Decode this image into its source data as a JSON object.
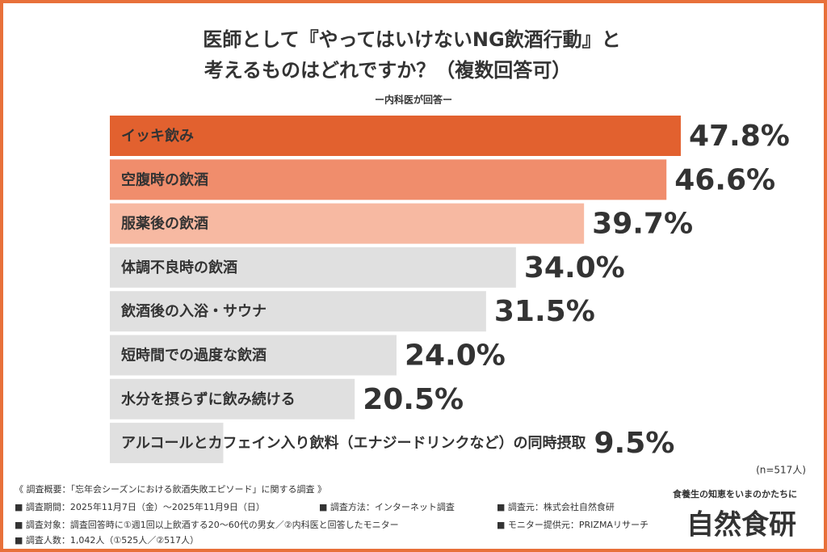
{
  "chart_data": {
    "type": "bar",
    "orientation": "horizontal",
    "title": [
      "医師として『やってはいけないNG飲酒行動』と",
      "考えるものはどれですか？（複数回答可）"
    ],
    "subtitle": "ー内科医が回答ー",
    "note": "(n=517人)",
    "categories": [
      "イッキ飲み",
      "空腹時の飲酒",
      "服薬後の飲酒",
      "体調不良時の飲酒",
      "飲酒後の入浴・サウナ",
      "短時間での過度な飲酒",
      "水分を摂らずに飲み続ける",
      "アルコールとカフェイン入り飲料（エナジードリンクなど）の同時摂取"
    ],
    "values": [
      47.8,
      46.6,
      39.7,
      34.0,
      31.5,
      24.0,
      20.5,
      9.5
    ],
    "value_labels": [
      "47.8%",
      "46.6%",
      "39.7%",
      "34.0%",
      "31.5%",
      "24.0%",
      "20.5%",
      "9.5%"
    ],
    "colors": [
      "#e2612f",
      "#f08d6c",
      "#f7b9a2",
      "#e0e0e0",
      "#e0e0e0",
      "#e0e0e0",
      "#e0e0e0",
      "#e0e0e0"
    ]
  },
  "survey": {
    "heading": "《 調査概要：「忘年会シーズンにおける飲酒失敗エピソード」に関する調査 》",
    "items": [
      "■ 調査期間：2025年11月7日（金）〜2025年11月9日（日）",
      "■ 調査方法：インターネット調査",
      "■ 調査元：株式会社自然食研",
      "■ 調査対象：調査回答時に①週1回以上飲酒する20〜60代の男女／②内科医と回答したモニター",
      "■ モニター提供元：PRIZMAリサーチ",
      "■ 調査人数：1,042人（①525人／②517人）"
    ]
  },
  "logo": {
    "tagline": "食養生の知恵をいまのかたちに",
    "name": "自然食研"
  }
}
